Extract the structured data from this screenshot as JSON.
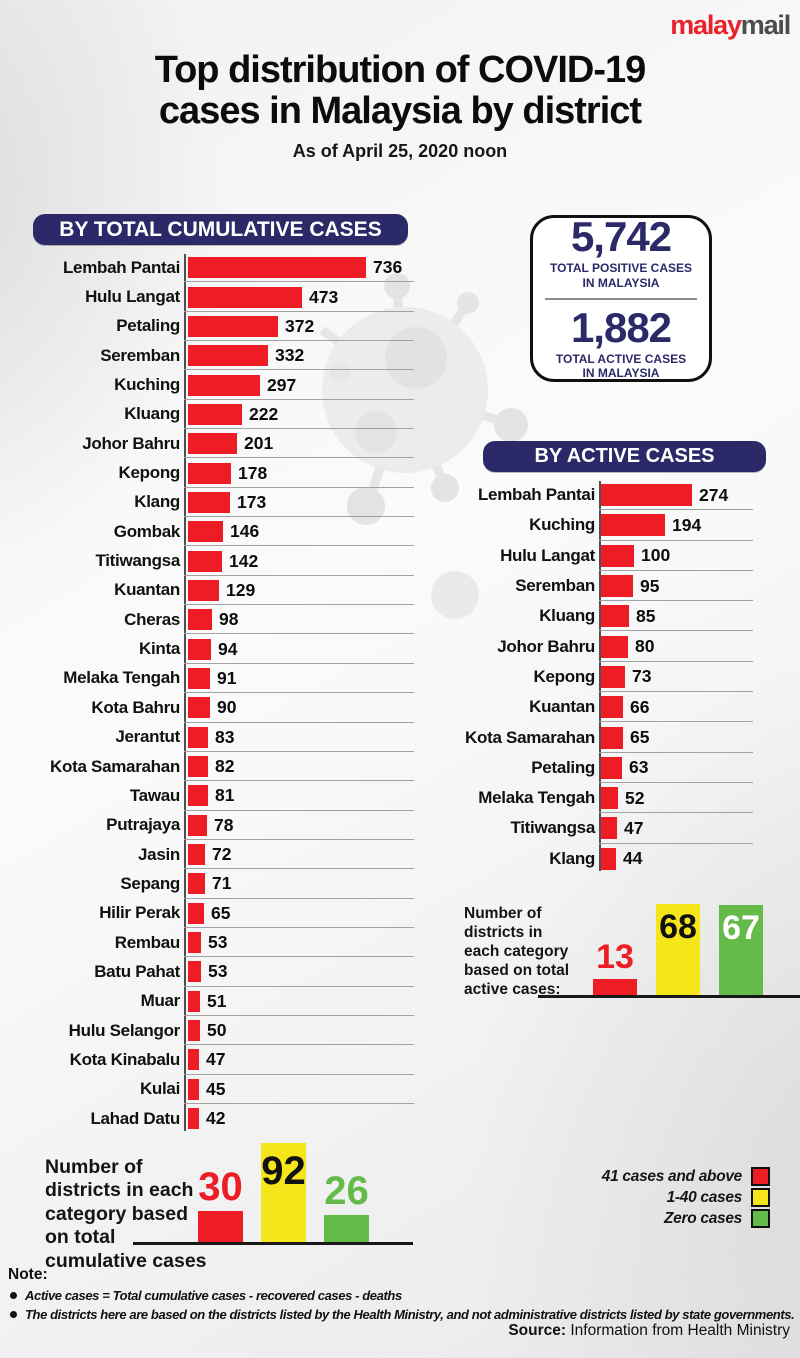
{
  "logo": {
    "red": "malay",
    "gray": "mail"
  },
  "header": {
    "title_line1": "Top distribution of COVID-19",
    "title_line2": "cases in Malaysia by district",
    "subtitle": "As of April 25, 2020 noon"
  },
  "totals": {
    "positive": {
      "value": "5,742",
      "label": "TOTAL POSITIVE CASES\nIN MALAYSIA"
    },
    "active": {
      "value": "1,882",
      "label": "TOTAL ACTIVE CASES\nIN MALAYSIA"
    }
  },
  "chart_data": [
    {
      "type": "bar",
      "orientation": "horizontal",
      "title": "BY TOTAL CUMULATIVE CASES",
      "bar_color": "#ee1c25",
      "xmax": 736,
      "categories": [
        "Lembah Pantai",
        "Hulu Langat",
        "Petaling",
        "Seremban",
        "Kuching",
        "Kluang",
        "Johor Bahru",
        "Kepong",
        "Klang",
        "Gombak",
        "Titiwangsa",
        "Kuantan",
        "Cheras",
        "Kinta",
        "Melaka Tengah",
        "Kota Bahru",
        "Jerantut",
        "Kota Samarahan",
        "Tawau",
        "Putrajaya",
        "Jasin",
        "Sepang",
        "Hilir Perak",
        "Rembau",
        "Batu Pahat",
        "Muar",
        "Hulu Selangor",
        "Kota Kinabalu",
        "Kulai",
        "Lahad Datu"
      ],
      "values": [
        736,
        473,
        372,
        332,
        297,
        222,
        201,
        178,
        173,
        146,
        142,
        129,
        98,
        94,
        91,
        90,
        83,
        82,
        81,
        78,
        72,
        71,
        65,
        53,
        53,
        51,
        50,
        47,
        45,
        42
      ]
    },
    {
      "type": "bar",
      "orientation": "horizontal",
      "title": "BY ACTIVE CASES",
      "bar_color": "#ee1c25",
      "xmax": 274,
      "categories": [
        "Lembah Pantai",
        "Kuching",
        "Hulu Langat",
        "Seremban",
        "Kluang",
        "Johor Bahru",
        "Kepong",
        "Kuantan",
        "Kota Samarahan",
        "Petaling",
        "Melaka Tengah",
        "Titiwangsa",
        "Klang"
      ],
      "values": [
        274,
        194,
        100,
        95,
        85,
        80,
        73,
        66,
        65,
        63,
        52,
        47,
        44
      ]
    },
    {
      "type": "bar",
      "orientation": "vertical",
      "title": "Number of\ndistricts in\neach category\nbased on total\nactive cases:",
      "categories": [
        "41 cases and above",
        "1-40 cases",
        "Zero cases"
      ],
      "values": [
        13,
        68,
        67
      ],
      "colors": [
        "#ee1c25",
        "#f5e61c",
        "#65bb4a"
      ],
      "value_labels": [
        {
          "position": "above",
          "color": "#ee1c25"
        },
        {
          "position": "inside",
          "color": "#111111"
        },
        {
          "position": "inside",
          "color": "#ffffff"
        }
      ]
    },
    {
      "type": "bar",
      "orientation": "vertical",
      "title": "Number of\ndistricts in each\ncategory based\non total\ncumulative cases",
      "categories": [
        "41 cases and above",
        "1-40 cases",
        "Zero cases"
      ],
      "values": [
        30,
        92,
        26
      ],
      "colors": [
        "#ee1c25",
        "#f5e61c",
        "#65bb4a"
      ],
      "value_labels": [
        {
          "position": "above",
          "color": "#ee1c25"
        },
        {
          "position": "inside",
          "color": "#111111"
        },
        {
          "position": "above",
          "color": "#65bb4a"
        }
      ]
    }
  ],
  "legend": {
    "items": [
      {
        "label": "41 cases and above",
        "color": "#ee1c25"
      },
      {
        "label": "1-40 cases",
        "color": "#f5e61c"
      },
      {
        "label": "Zero cases",
        "color": "#65bb4a"
      }
    ]
  },
  "notes": {
    "heading": "Note:",
    "bullets": [
      "Active cases = Total cumulative cases - recovered cases - deaths",
      "The districts here are based on the districts listed by the Health Ministry, and not administrative districts listed by state governments."
    ]
  },
  "source": {
    "label": "Source:",
    "text": "Information from Health Ministry"
  },
  "colors": {
    "navy": "#2b2968",
    "red": "#ee1c25",
    "yellow": "#f5e61c",
    "green": "#65bb4a"
  }
}
